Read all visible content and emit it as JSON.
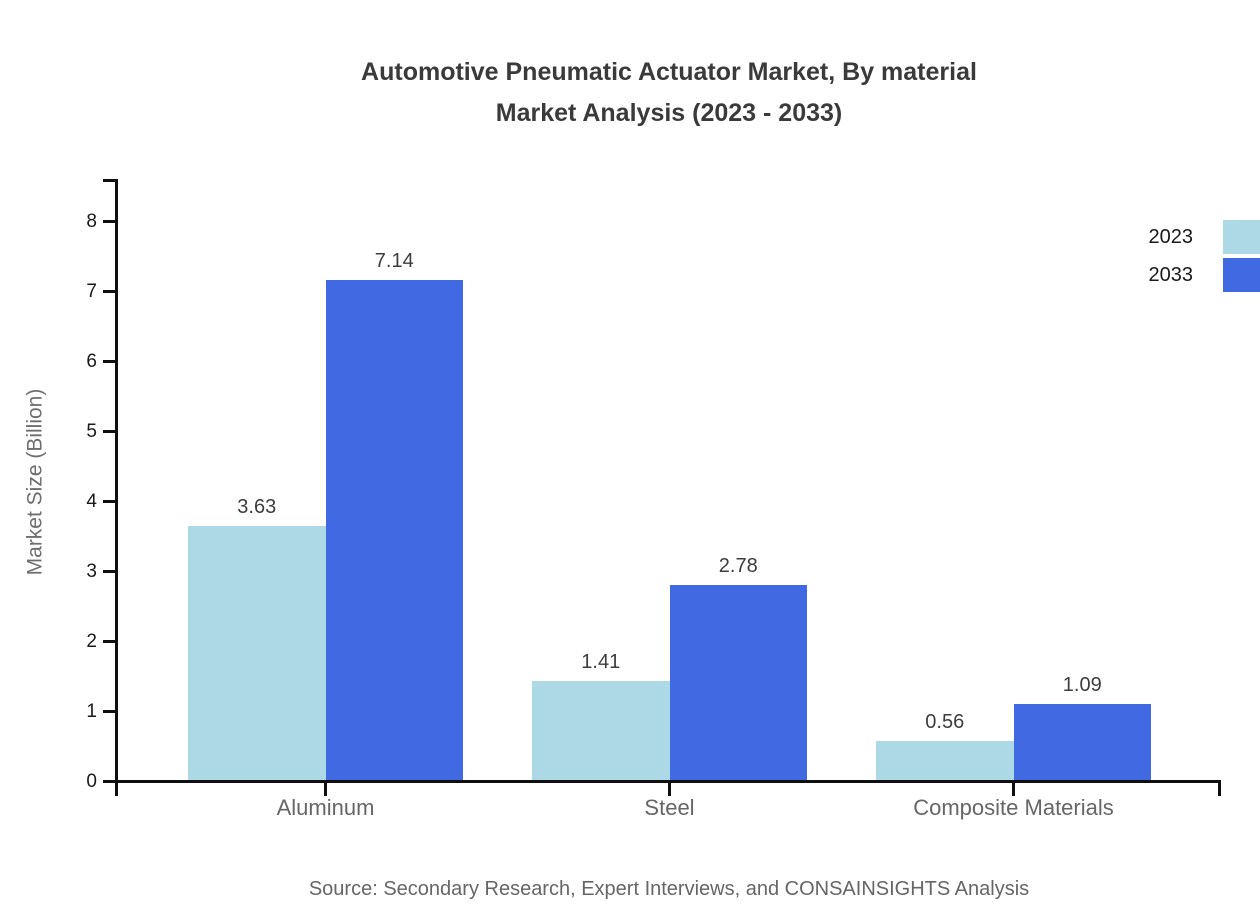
{
  "title": {
    "line1": "Automotive Pneumatic Actuator Market, By material",
    "line2": "Market Analysis (2023 - 2033)"
  },
  "source_note": "Source: Secondary Research, Expert Interviews, and CONSAINSIGHTS Analysis",
  "colors": {
    "series_2023": "#ADD8E6",
    "series_2033": "#4169E1",
    "title_text": "#3A3A3A",
    "tick_text": "#1A1A1A",
    "muted_text": "#666666",
    "axis_line": "#0F0F0F",
    "background": "#FFFFFF"
  },
  "chart_data": {
    "type": "bar",
    "title": "Automotive Pneumatic Actuator Market, By material Market Analysis (2023 - 2033)",
    "categories": [
      "Aluminum",
      "Steel",
      "Composite Materials"
    ],
    "series": [
      {
        "name": "2023",
        "color": "#ADD8E6",
        "values": [
          3.63,
          1.41,
          0.56
        ]
      },
      {
        "name": "2033",
        "color": "#4169E1",
        "values": [
          7.14,
          2.78,
          1.09
        ]
      }
    ],
    "value_labels": [
      [
        "3.63",
        "1.41",
        "0.56"
      ],
      [
        "7.14",
        "2.78",
        "1.09"
      ]
    ],
    "xlabel": "",
    "ylabel": "Market Size (Billion)",
    "ylim": [
      0,
      8
    ],
    "yticks": [
      "0",
      "1",
      "2",
      "3",
      "4",
      "5",
      "6",
      "7",
      "8"
    ],
    "grid": false,
    "legend_position": "top-right",
    "bar_value_labels": true
  }
}
